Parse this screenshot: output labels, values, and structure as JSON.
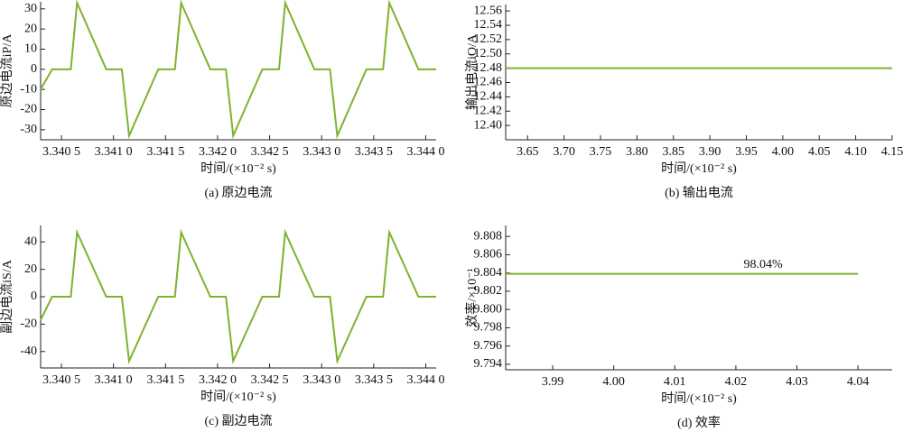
{
  "chart_data": [
    {
      "type": "line",
      "title": "(a) 原边电流",
      "xlabel": "时间/(×10⁻² s)",
      "ylabel": "原边电流iP/A",
      "color": "#7fb32b",
      "x": [
        3.3403,
        3.34041,
        3.34059,
        3.34065,
        3.34093,
        3.34108,
        3.34115,
        3.34143,
        3.34159,
        3.34165,
        3.34193,
        3.34208,
        3.34215,
        3.34243,
        3.34259,
        3.34265,
        3.34293,
        3.34308,
        3.34315,
        3.34343,
        3.34359,
        3.34365,
        3.34393,
        3.3441
      ],
      "values": [
        -10,
        0,
        0,
        33,
        0,
        0,
        -33,
        0,
        0,
        33,
        0,
        0,
        -33,
        0,
        0,
        33,
        0,
        0,
        -33,
        0,
        0,
        33,
        0,
        0
      ],
      "xlim": [
        3.3403,
        3.3441
      ],
      "ylim": [
        -35,
        33.5
      ],
      "xticks": [
        {
          "value": 3.3405,
          "label": "3.340 5"
        },
        {
          "value": 3.341,
          "label": "3.341 0"
        },
        {
          "value": 3.3415,
          "label": "3.341 5"
        },
        {
          "value": 3.342,
          "label": "3.342 0"
        },
        {
          "value": 3.3425,
          "label": "3.342 5"
        },
        {
          "value": 3.343,
          "label": "3.343 0"
        },
        {
          "value": 3.3435,
          "label": "3.343 5"
        },
        {
          "value": 3.344,
          "label": "3.344 0"
        }
      ],
      "yticks": [
        -30,
        -20,
        -10,
        0,
        10,
        20,
        30
      ]
    },
    {
      "type": "line",
      "title": "(b) 输出电流",
      "xlabel": "时间/(×10⁻² s)",
      "ylabel": "输出电流iO/A",
      "color": "#7fb32b",
      "x": [
        3.62,
        4.15
      ],
      "values": [
        12.48,
        12.48
      ],
      "xlim": [
        3.62,
        4.15
      ],
      "ylim": [
        12.38,
        12.569
      ],
      "xticks": [
        3.65,
        {
          "value": 3.7,
          "label": "3.70"
        },
        3.75,
        {
          "value": 3.8,
          "label": "3.80"
        },
        3.85,
        {
          "value": 3.9,
          "label": "3.90"
        },
        3.95,
        {
          "value": 4,
          "label": "4.00"
        },
        4.05,
        {
          "value": 4.1,
          "label": "4.10"
        },
        4.15
      ],
      "yticks": [
        {
          "value": 12.4,
          "label": "12.40"
        },
        12.42,
        12.44,
        12.46,
        12.48,
        {
          "value": 12.5,
          "label": "12.50"
        },
        12.52,
        12.54,
        12.56
      ]
    },
    {
      "type": "line",
      "title": "(c) 副边电流",
      "xlabel": "时间/(×10⁻² s)",
      "ylabel": "副边电流iS/A",
      "color": "#7fb32b",
      "x": [
        3.3403,
        3.34041,
        3.34059,
        3.34065,
        3.34093,
        3.34108,
        3.34115,
        3.34143,
        3.34159,
        3.34165,
        3.34193,
        3.34208,
        3.34215,
        3.34243,
        3.34259,
        3.34265,
        3.34293,
        3.34308,
        3.34315,
        3.34343,
        3.34359,
        3.34365,
        3.34393,
        3.3441
      ],
      "values": [
        -17,
        0,
        0,
        47,
        0,
        0,
        -47,
        0,
        0,
        47,
        0,
        0,
        -47,
        0,
        0,
        47,
        0,
        0,
        -47,
        0,
        0,
        47,
        0,
        0
      ],
      "xlim": [
        3.3403,
        3.3441
      ],
      "ylim": [
        -52,
        52
      ],
      "xticks": [
        {
          "value": 3.3405,
          "label": "3.340 5"
        },
        {
          "value": 3.341,
          "label": "3.341 0"
        },
        {
          "value": 3.3415,
          "label": "3.341 5"
        },
        {
          "value": 3.342,
          "label": "3.342 0"
        },
        {
          "value": 3.3425,
          "label": "3.342 5"
        },
        {
          "value": 3.343,
          "label": "3.343 0"
        },
        {
          "value": 3.3435,
          "label": "3.343 5"
        },
        {
          "value": 3.344,
          "label": "3.344 0"
        }
      ],
      "yticks": [
        -40,
        -20,
        0,
        20,
        40
      ]
    },
    {
      "type": "line",
      "title": "(d) 效率",
      "xlabel": "时间/(×10⁻² s)",
      "ylabel": "效率/×10⁻¹",
      "color": "#7fb32b",
      "annotation": "98.04%",
      "x": [
        3.9823,
        4.04
      ],
      "values": [
        9.8039,
        9.8039
      ],
      "xlim": [
        3.9823,
        4.0456
      ],
      "ylim": [
        9.7934,
        9.8092
      ],
      "xticks": [
        3.99,
        {
          "value": 4,
          "label": "4.00"
        },
        4.01,
        4.02,
        4.03,
        4.04
      ],
      "yticks": [
        9.794,
        9.796,
        9.798,
        {
          "value": 9.8,
          "label": "9.800"
        },
        9.802,
        9.804,
        9.806,
        9.808
      ]
    }
  ]
}
